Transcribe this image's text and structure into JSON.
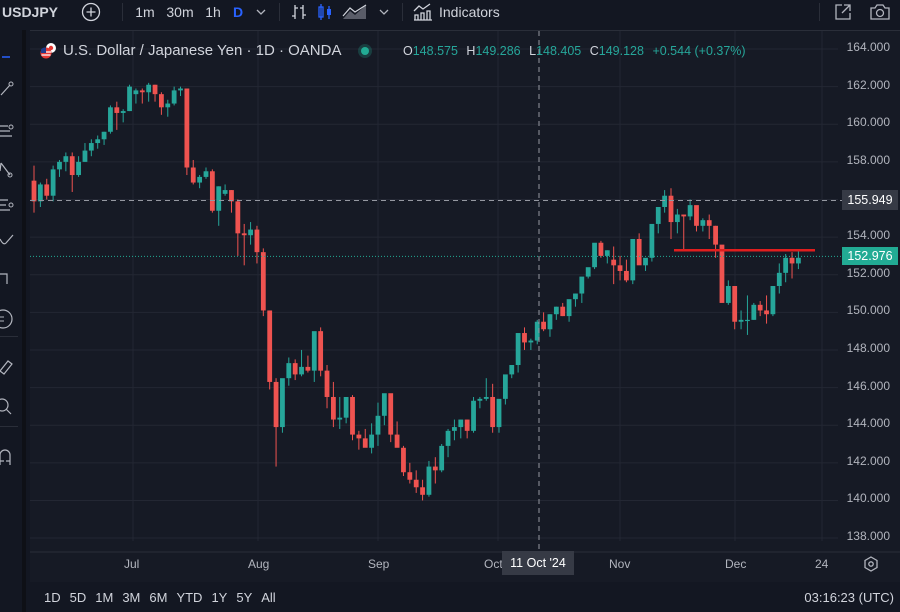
{
  "toolbar": {
    "symbol": "USDJPY",
    "add_symbol_icon": "plus-circle-icon",
    "intervals": [
      "1m",
      "30m",
      "1h",
      "D"
    ],
    "active_interval": "D",
    "indicators_label": "Indicators"
  },
  "legend": {
    "title": "U.S. Dollar / Japanese Yen · 1D · OANDA",
    "open_key": "O",
    "open": "148.575",
    "high_key": "H",
    "high": "149.286",
    "low_key": "L",
    "low": "148.405",
    "close_key": "C",
    "close": "149.128",
    "change": "+0.544 (+0.37%)"
  },
  "price_axis": {
    "labels": [
      "164.000",
      "162.000",
      "160.000",
      "158.000",
      "154.000",
      "152.000",
      "150.000",
      "148.000",
      "146.000",
      "144.000",
      "142.000",
      "140.000",
      "138.000"
    ],
    "crosshair_price": "155.949",
    "last_price": "152.976"
  },
  "time_axis": {
    "labels": [
      "Jul",
      "Aug",
      "Sep",
      "Oct",
      "Nov",
      "Dec",
      "24"
    ],
    "crosshair_date": "11 Oct '24"
  },
  "bottom_bar": {
    "ranges": [
      "1D",
      "5D",
      "1M",
      "3M",
      "6M",
      "YTD",
      "1Y",
      "5Y",
      "All"
    ],
    "clock": "03:16:23 (UTC)"
  },
  "colors": {
    "up": "#26a69a",
    "down": "#ef5350",
    "background": "#161a25",
    "last_price_badge": "#22ab94",
    "horizontal_line": "#e01e1e",
    "active_interval": "#2962ff"
  },
  "chart_data": {
    "type": "candlestick",
    "title": "U.S. Dollar / Japanese Yen · 1D · OANDA",
    "xlabel": "",
    "ylabel": "",
    "ylim": [
      138,
      164
    ],
    "x_ticks": [
      "Jul",
      "Aug",
      "Sep",
      "Oct",
      "Nov",
      "Dec",
      "24"
    ],
    "y_ticks": [
      138,
      140,
      142,
      144,
      146,
      148,
      150,
      152,
      154,
      156,
      158,
      160,
      162,
      164
    ],
    "grid": true,
    "last_price": 152.976,
    "crosshair": {
      "date": "11 Oct '24",
      "price": 155.949
    },
    "horizontal_line": {
      "price": 153.3,
      "from": "mid-Nov",
      "to": "late-Dec"
    },
    "candles": [
      [
        157.0,
        157.8,
        155.3,
        155.9
      ],
      [
        155.9,
        156.9,
        155.6,
        156.8
      ],
      [
        156.8,
        157.1,
        156.0,
        156.2
      ],
      [
        156.2,
        157.8,
        155.9,
        157.6
      ],
      [
        157.6,
        158.1,
        157.2,
        158.0
      ],
      [
        158.0,
        158.5,
        157.5,
        158.3
      ],
      [
        158.3,
        158.5,
        156.4,
        157.3
      ],
      [
        157.3,
        158.3,
        157.2,
        158.0
      ],
      [
        158.0,
        159.0,
        158.0,
        158.6
      ],
      [
        158.6,
        159.2,
        158.3,
        159.0
      ],
      [
        159.0,
        159.4,
        158.7,
        159.2
      ],
      [
        159.2,
        159.6,
        158.9,
        159.6
      ],
      [
        159.6,
        161.0,
        159.5,
        160.9
      ],
      [
        160.9,
        161.2,
        159.7,
        160.6
      ],
      [
        160.6,
        160.8,
        160.1,
        160.7
      ],
      [
        160.7,
        162.1,
        160.7,
        162.0
      ],
      [
        161.6,
        161.9,
        161.1,
        161.8
      ],
      [
        161.8,
        161.9,
        161.1,
        161.7
      ],
      [
        161.7,
        162.2,
        161.2,
        162.1
      ],
      [
        162.1,
        162.1,
        161.2,
        161.6
      ],
      [
        161.6,
        161.7,
        160.5,
        160.9
      ],
      [
        160.9,
        161.3,
        160.4,
        161.1
      ],
      [
        161.1,
        162.0,
        161.0,
        161.8
      ],
      [
        161.8,
        162.0,
        161.5,
        161.9
      ],
      [
        161.9,
        161.9,
        157.3,
        157.7
      ],
      [
        157.7,
        158.1,
        156.8,
        156.9
      ],
      [
        156.9,
        157.3,
        156.6,
        157.2
      ],
      [
        157.2,
        157.7,
        157.1,
        157.5
      ],
      [
        157.5,
        157.6,
        155.3,
        155.4
      ],
      [
        155.4,
        156.7,
        154.6,
        156.7
      ],
      [
        156.3,
        156.8,
        156.2,
        156.5
      ],
      [
        156.5,
        156.5,
        155.3,
        155.9
      ],
      [
        155.9,
        156.0,
        153.0,
        154.2
      ],
      [
        154.2,
        154.7,
        152.5,
        154.1
      ],
      [
        154.1,
        154.8,
        153.6,
        154.4
      ],
      [
        154.4,
        154.6,
        152.6,
        153.2
      ],
      [
        153.2,
        153.4,
        149.8,
        150.1
      ],
      [
        150.1,
        150.1,
        145.9,
        146.3
      ],
      [
        146.3,
        146.5,
        141.8,
        143.9
      ],
      [
        143.9,
        146.0,
        143.6,
        146.5
      ],
      [
        146.5,
        147.6,
        146.1,
        147.3
      ],
      [
        147.3,
        147.5,
        146.4,
        146.7
      ],
      [
        146.7,
        148.0,
        146.6,
        147.1
      ],
      [
        147.1,
        147.7,
        146.8,
        146.9
      ],
      [
        146.9,
        148.8,
        146.3,
        149.0
      ],
      [
        149.0,
        149.2,
        146.6,
        146.9
      ],
      [
        146.9,
        147.2,
        144.9,
        145.5
      ],
      [
        145.5,
        146.3,
        143.9,
        144.3
      ],
      [
        144.3,
        145.5,
        143.8,
        144.4
      ],
      [
        144.4,
        145.2,
        144.1,
        145.5
      ],
      [
        145.5,
        145.6,
        143.2,
        143.5
      ],
      [
        143.5,
        143.7,
        142.7,
        143.3
      ],
      [
        143.3,
        143.8,
        143.0,
        142.8
      ],
      [
        142.8,
        144.1,
        142.5,
        143.5
      ],
      [
        143.5,
        145.2,
        142.9,
        144.5
      ],
      [
        144.5,
        145.2,
        144.0,
        145.7
      ],
      [
        145.7,
        145.6,
        143.1,
        143.5
      ],
      [
        143.5,
        144.2,
        142.9,
        142.8
      ],
      [
        142.8,
        142.9,
        141.3,
        141.5
      ],
      [
        141.5,
        142.0,
        140.9,
        141.1
      ],
      [
        141.1,
        141.6,
        140.4,
        140.7
      ],
      [
        140.7,
        141.1,
        140.0,
        140.3
      ],
      [
        140.3,
        142.1,
        140.2,
        141.8
      ],
      [
        141.8,
        142.3,
        140.9,
        141.6
      ],
      [
        141.6,
        143.0,
        141.5,
        142.9
      ],
      [
        142.9,
        143.8,
        142.3,
        143.7
      ],
      [
        143.7,
        144.3,
        143.2,
        143.9
      ],
      [
        143.9,
        144.3,
        143.3,
        144.3
      ],
      [
        144.3,
        144.3,
        143.3,
        143.7
      ],
      [
        143.7,
        145.5,
        143.6,
        145.3
      ],
      [
        145.3,
        145.5,
        144.9,
        145.4
      ],
      [
        145.4,
        146.5,
        145.3,
        145.5
      ],
      [
        145.5,
        146.2,
        143.6,
        143.9
      ],
      [
        143.9,
        144.9,
        143.6,
        145.4
      ],
      [
        145.4,
        146.3,
        145.1,
        146.7
      ],
      [
        146.7,
        147.0,
        146.5,
        147.2
      ],
      [
        147.2,
        148.1,
        146.8,
        148.9
      ],
      [
        148.9,
        149.2,
        148.0,
        148.4
      ],
      [
        148.4,
        148.6,
        148.0,
        148.5
      ],
      [
        148.5,
        149.6,
        148.3,
        149.5
      ],
      [
        149.5,
        150.0,
        149.0,
        149.1
      ],
      [
        149.1,
        149.9,
        148.7,
        149.9
      ],
      [
        149.9,
        150.3,
        149.6,
        150.3
      ],
      [
        150.3,
        150.5,
        149.8,
        149.8
      ],
      [
        149.8,
        150.4,
        149.5,
        150.7
      ],
      [
        150.7,
        151.0,
        150.3,
        151.0
      ],
      [
        151.0,
        151.4,
        150.5,
        151.9
      ],
      [
        151.9,
        152.3,
        151.8,
        152.4
      ],
      [
        152.4,
        153.5,
        152.3,
        153.7
      ],
      [
        153.7,
        153.8,
        152.9,
        153.0
      ],
      [
        153.0,
        153.3,
        152.6,
        153.3
      ],
      [
        152.8,
        153.5,
        151.5,
        152.5
      ],
      [
        152.5,
        153.0,
        151.7,
        152.2
      ],
      [
        152.2,
        152.8,
        151.6,
        151.7
      ],
      [
        151.7,
        153.9,
        151.5,
        153.9
      ],
      [
        153.9,
        154.2,
        152.9,
        152.5
      ],
      [
        152.5,
        152.8,
        152.2,
        152.9
      ],
      [
        152.9,
        154.2,
        152.7,
        154.7
      ],
      [
        154.7,
        155.1,
        154.2,
        155.6
      ],
      [
        155.6,
        156.5,
        155.3,
        156.2
      ],
      [
        156.2,
        156.6,
        153.9,
        154.8
      ],
      [
        154.8,
        155.5,
        154.2,
        155.2
      ],
      [
        155.2,
        155.2,
        153.3,
        155.1
      ],
      [
        155.1,
        156.0,
        154.9,
        155.7
      ],
      [
        155.7,
        155.6,
        154.3,
        154.6
      ],
      [
        154.6,
        155.0,
        154.3,
        154.9
      ],
      [
        154.9,
        155.2,
        153.9,
        154.6
      ],
      [
        154.6,
        154.6,
        152.9,
        153.6
      ],
      [
        153.6,
        153.5,
        150.7,
        150.5
      ],
      [
        150.5,
        151.7,
        150.4,
        151.4
      ],
      [
        151.4,
        151.3,
        149.1,
        149.5
      ],
      [
        149.5,
        150.1,
        149.1,
        149.6
      ],
      [
        149.6,
        150.9,
        148.8,
        149.6
      ],
      [
        149.6,
        150.5,
        149.6,
        150.4
      ],
      [
        150.4,
        150.6,
        149.8,
        150.1
      ],
      [
        150.1,
        150.9,
        149.4,
        149.9
      ],
      [
        149.9,
        151.4,
        149.8,
        151.4
      ],
      [
        151.4,
        152.6,
        151.0,
        152.1
      ],
      [
        152.1,
        153.1,
        151.6,
        152.9
      ],
      [
        152.9,
        153.2,
        151.8,
        152.6
      ],
      [
        152.6,
        153.3,
        152.3,
        152.9
      ]
    ]
  }
}
